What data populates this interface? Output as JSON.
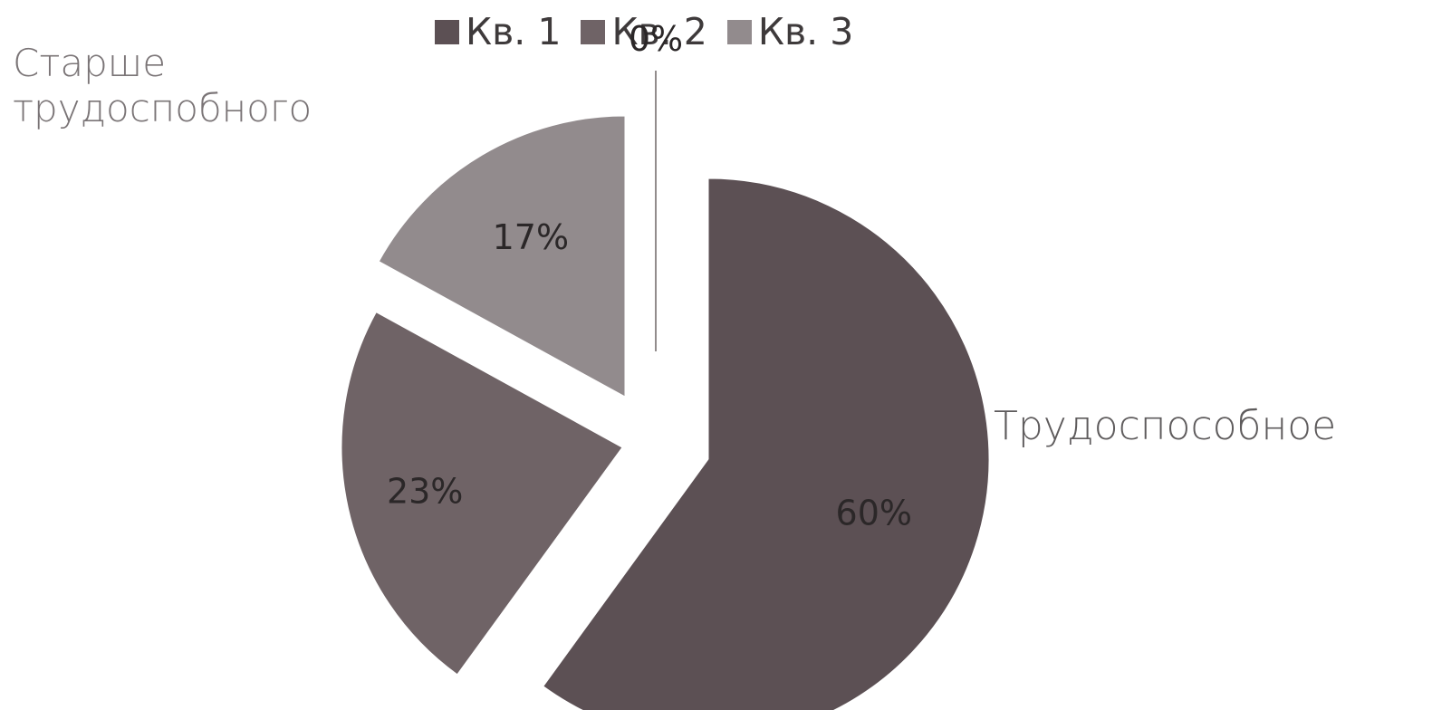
{
  "chart_data": {
    "type": "pie",
    "legend": [
      "Кв. 1",
      "Кв. 2",
      "Кв. 3"
    ],
    "legend_placement": "top",
    "slices": [
      {
        "legend": "Кв. 1",
        "value": 60,
        "label": "60%",
        "color": "#5c5054"
      },
      {
        "legend": "Кв. 2",
        "value": 23,
        "label": "23%",
        "color": "#6f6366"
      },
      {
        "legend": "Кв. 3",
        "value": 17,
        "label": "17%",
        "color": "#928b8d"
      },
      {
        "legend": "",
        "value": 0,
        "label": "0%",
        "color": "#6f6767"
      }
    ],
    "annotations": [
      "Старше",
      "трудоспобного",
      "Трудоспособное"
    ],
    "exploded": true
  }
}
